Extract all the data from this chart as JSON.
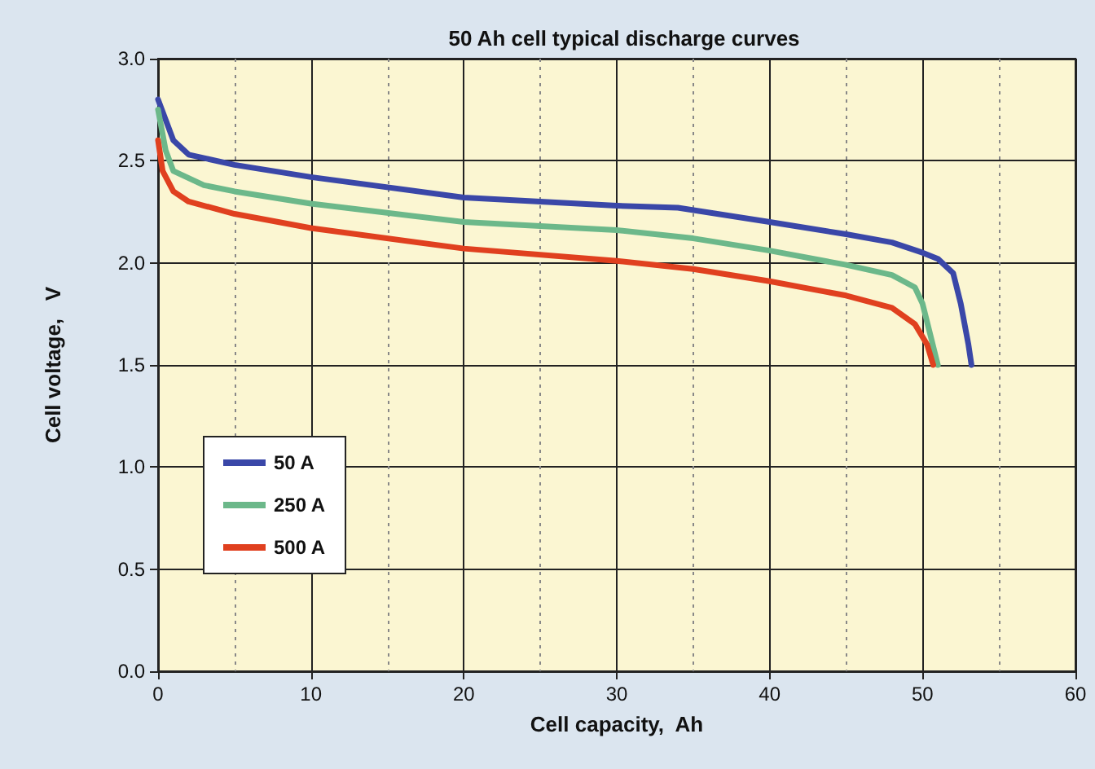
{
  "chart_data": {
    "type": "line",
    "title": "50 Ah cell typical discharge curves",
    "xlabel": "Cell capacity,  Ah",
    "ylabel": "Cell voltage,   V",
    "xlim": [
      0,
      60
    ],
    "xticks": [
      0,
      {
        "value": 5,
        "label": null
      },
      10,
      {
        "value": 15,
        "label": null
      },
      20,
      {
        "value": 25,
        "label": null
      },
      30,
      {
        "value": 35,
        "label": null
      },
      40,
      {
        "value": 45,
        "label": null
      },
      50,
      {
        "value": 55,
        "label": null
      },
      60
    ],
    "ylim": [
      0,
      3
    ],
    "yticks": [
      {
        "value": 0,
        "label": "0.0"
      },
      0.5,
      {
        "value": 1,
        "label": "1.0"
      },
      1.5,
      {
        "value": 2,
        "label": "2.0"
      },
      2.5,
      {
        "value": 3,
        "label": "3.0"
      }
    ],
    "grid": true,
    "legend": "left",
    "marker": "none",
    "line_style": "solid",
    "series": [
      {
        "name": "50 A",
        "color": "#3a47a8",
        "x": [
          0,
          1,
          2,
          5,
          10,
          20,
          30,
          34,
          40,
          45,
          48,
          50,
          51,
          52,
          52.5,
          53,
          53.2
        ],
        "values": [
          2.8,
          2.6,
          2.53,
          2.48,
          2.42,
          2.32,
          2.28,
          2.27,
          2.2,
          2.14,
          2.1,
          2.05,
          2.02,
          1.95,
          1.8,
          1.6,
          1.5
        ]
      },
      {
        "name": "250 A",
        "color": "#6cb88a",
        "x": [
          0,
          0.5,
          1,
          3,
          5,
          10,
          20,
          30,
          35,
          40,
          45,
          48,
          49.5,
          50,
          50.5,
          51
        ],
        "values": [
          2.75,
          2.55,
          2.45,
          2.38,
          2.35,
          2.29,
          2.2,
          2.16,
          2.12,
          2.06,
          1.99,
          1.94,
          1.88,
          1.8,
          1.65,
          1.5
        ]
      },
      {
        "name": "500 A",
        "color": "#e0401f",
        "x": [
          0,
          0.3,
          1,
          2,
          5,
          10,
          20,
          30,
          35,
          40,
          45,
          48,
          49.5,
          50.3,
          50.7
        ],
        "values": [
          2.6,
          2.45,
          2.35,
          2.3,
          2.24,
          2.17,
          2.07,
          2.01,
          1.97,
          1.91,
          1.84,
          1.78,
          1.7,
          1.6,
          1.5
        ]
      }
    ]
  }
}
